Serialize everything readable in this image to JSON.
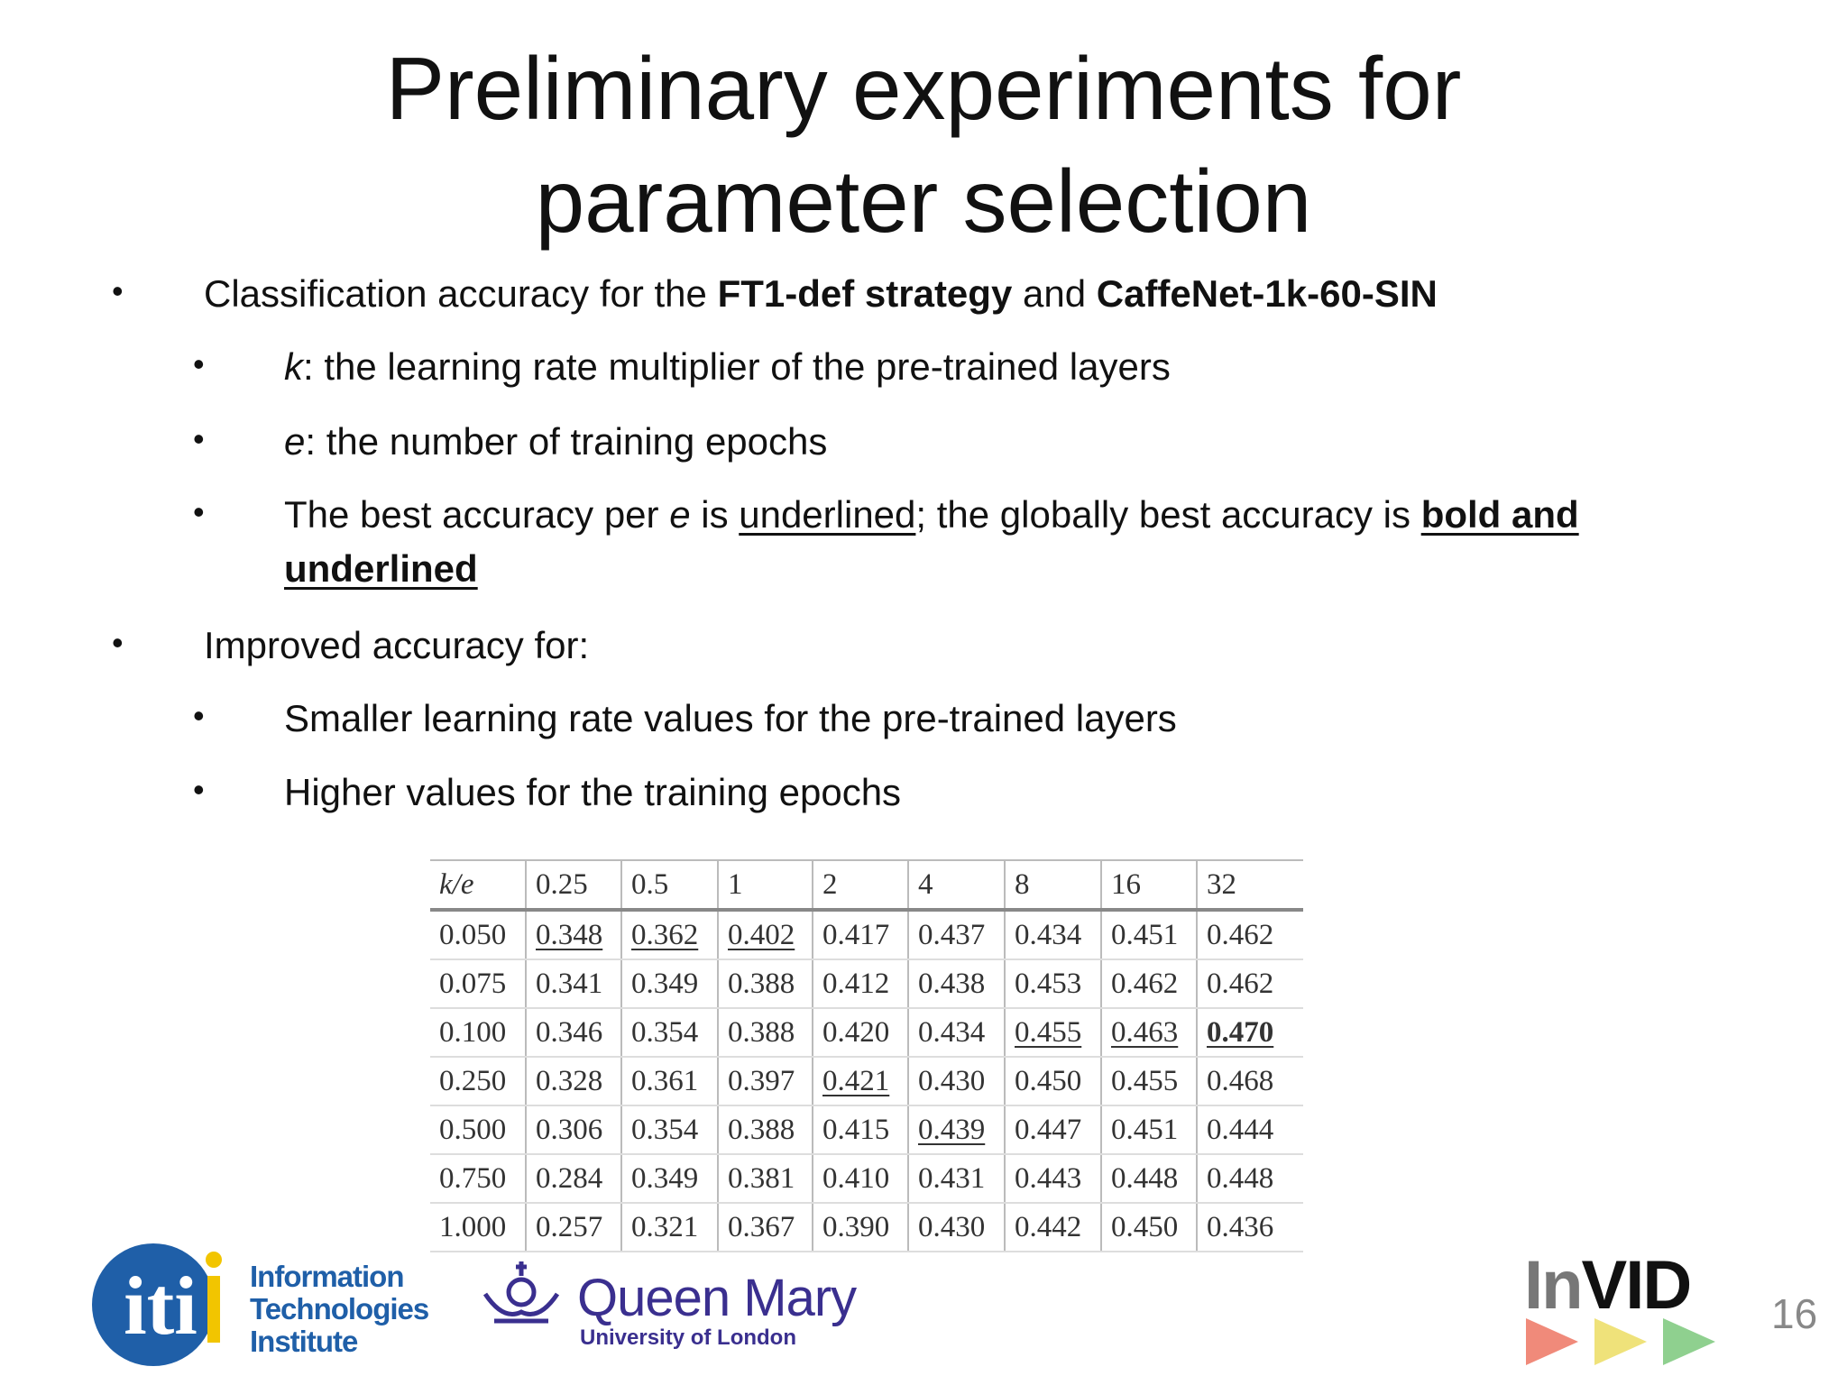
{
  "title": "Preliminary experiments for parameter selection",
  "bullets": [
    {
      "parts": [
        "Classification accuracy for the ",
        "FT1-def strategy",
        " and ",
        "CaffeNet-1k-60-SIN"
      ],
      "sub": [
        {
          "parts": [
            "k",
            ": the learning rate multiplier of the pre-trained layers"
          ]
        },
        {
          "parts": [
            "e",
            ": the number of training epochs"
          ]
        },
        {
          "parts": [
            "The best accuracy per ",
            "e",
            " is ",
            "underlined",
            "; the globally best accuracy is ",
            "bold and underlined"
          ]
        }
      ]
    },
    {
      "parts": [
        "Improved accuracy for:"
      ],
      "sub": [
        {
          "parts": [
            "Smaller learning rate values for the pre-trained layers"
          ]
        },
        {
          "parts": [
            "Higher values for the training epochs"
          ]
        }
      ]
    }
  ],
  "table": {
    "header": [
      "k/e",
      "0.25",
      "0.5",
      "1",
      "2",
      "4",
      "8",
      "16",
      "32"
    ],
    "rows": [
      [
        "0.050",
        {
          "text": "0.348",
          "style": "underline"
        },
        {
          "text": "0.362",
          "style": "underline"
        },
        {
          "text": "0.402",
          "style": "underline"
        },
        "0.417",
        "0.437",
        "0.434",
        "0.451",
        "0.462"
      ],
      [
        "0.075",
        "0.341",
        "0.349",
        "0.388",
        "0.412",
        "0.438",
        "0.453",
        "0.462",
        "0.462"
      ],
      [
        "0.100",
        "0.346",
        "0.354",
        "0.388",
        "0.420",
        "0.434",
        {
          "text": "0.455",
          "style": "underline"
        },
        {
          "text": "0.463",
          "style": "underline"
        },
        {
          "text": "0.470",
          "style": "bold-underline"
        }
      ],
      [
        "0.250",
        "0.328",
        "0.361",
        "0.397",
        {
          "text": "0.421",
          "style": "underline"
        },
        "0.430",
        "0.450",
        "0.455",
        "0.468"
      ],
      [
        "0.500",
        "0.306",
        "0.354",
        "0.388",
        "0.415",
        {
          "text": "0.439",
          "style": "underline"
        },
        "0.447",
        "0.451",
        "0.444"
      ],
      [
        "0.750",
        "0.284",
        "0.349",
        "0.381",
        "0.410",
        "0.431",
        "0.443",
        "0.448",
        "0.448"
      ],
      [
        "1.000",
        "0.257",
        "0.321",
        "0.367",
        "0.390",
        "0.430",
        "0.442",
        "0.450",
        "0.436"
      ]
    ]
  },
  "footer": {
    "iti_mark": "iti",
    "iti_name": [
      "Information",
      "Technologies",
      "Institute"
    ],
    "qm_name": "Queen Mary",
    "qm_sub": "University of London",
    "invid": [
      "In",
      "VID"
    ],
    "page_number": "16"
  }
}
